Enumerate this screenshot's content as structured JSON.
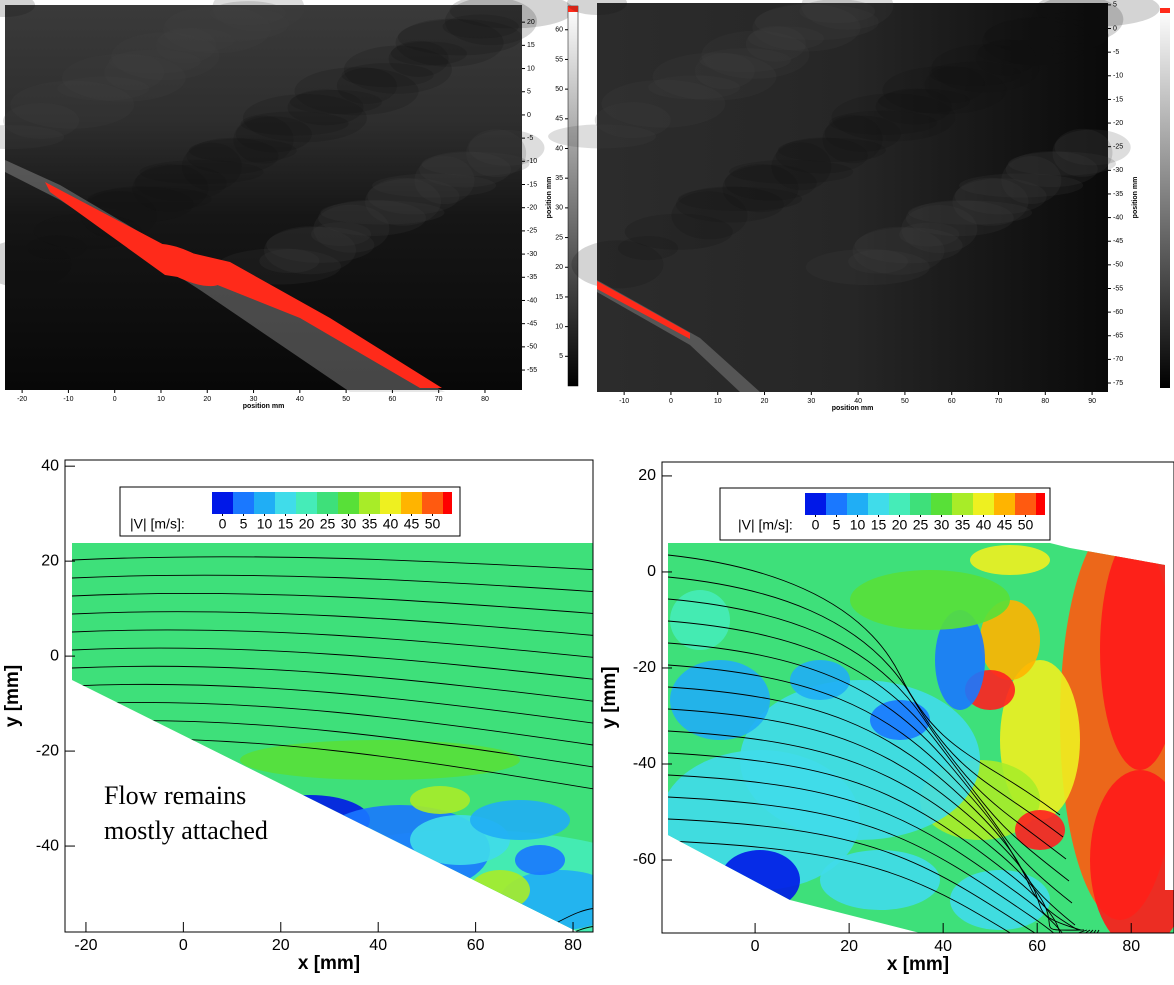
{
  "chart_data": [
    {
      "type": "image",
      "xlabel": "position mm",
      "ylabel": "position mm",
      "xlim": [
        -23.7,
        88
      ],
      "ylim": [
        -59.3,
        23.7
      ],
      "xticks": [
        -20,
        -10,
        0,
        10,
        20,
        30,
        40,
        50,
        60,
        70,
        80
      ],
      "yticks": [
        20,
        15,
        10,
        5,
        0,
        -5,
        -10,
        -15,
        -20,
        -25,
        -30,
        -35,
        -40,
        -45,
        -50,
        -55
      ],
      "colorbar": {
        "lim": [
          0,
          64
        ],
        "ticks": [
          5,
          10,
          15,
          20,
          25,
          30,
          35,
          40,
          45,
          50,
          55,
          60
        ]
      }
    },
    {
      "type": "image",
      "xlabel": "position mm",
      "ylabel": "position mm",
      "xlim": [
        -15.8,
        93.4
      ],
      "ylim": [
        -76.9,
        5.4
      ],
      "xticks": [
        -10,
        0,
        10,
        20,
        30,
        40,
        50,
        60,
        70,
        80,
        90
      ],
      "yticks": [
        5,
        0,
        -5,
        -10,
        -15,
        -20,
        -25,
        -30,
        -35,
        -40,
        -45,
        -50,
        -55,
        -60,
        -65,
        -70,
        -75
      ]
    },
    {
      "type": "contour",
      "xlabel": "x [mm]",
      "ylabel": "y [mm]",
      "xlim": [
        -24.3,
        84.1
      ],
      "ylim": [
        -58.1,
        41.3
      ],
      "xticks": [
        -20,
        0,
        20,
        40,
        60,
        80
      ],
      "yticks": [
        40,
        20,
        0,
        -20,
        -40
      ],
      "colorbar": {
        "label": "|V| [m/s]:",
        "lim": [
          -2.5,
          52.5
        ],
        "ticks": [
          0,
          5,
          10,
          15,
          20,
          25,
          30,
          35,
          40,
          45,
          50
        ],
        "colors": [
          "#0018e8",
          "#1a78ff",
          "#20aef5",
          "#40dcea",
          "#45ecb8",
          "#3ee07a",
          "#58e038",
          "#a8ec28",
          "#eef020",
          "#ffb400",
          "#ff5a10"
        ]
      },
      "annotation": "Flow remains mostly attached"
    },
    {
      "type": "contour",
      "xlabel": "x [mm]",
      "ylabel": "y [mm]",
      "xlim": [
        -19.8,
        89.1
      ],
      "ylim": [
        -75.2,
        22.9
      ],
      "xticks": [
        0,
        20,
        40,
        60,
        80
      ],
      "yticks": [
        20,
        0,
        -20,
        -40,
        -60
      ],
      "colorbar": {
        "label": "|V| [m/s]:",
        "lim": [
          -2.5,
          52.5
        ],
        "ticks": [
          0,
          5,
          10,
          15,
          20,
          25,
          30,
          35,
          40,
          45,
          50
        ],
        "colors": [
          "#0018e8",
          "#1a78ff",
          "#20aef5",
          "#40dcea",
          "#45ecb8",
          "#3ee07a",
          "#58e038",
          "#a8ec28",
          "#eef020",
          "#ffb400",
          "#ff5a10"
        ]
      }
    }
  ]
}
